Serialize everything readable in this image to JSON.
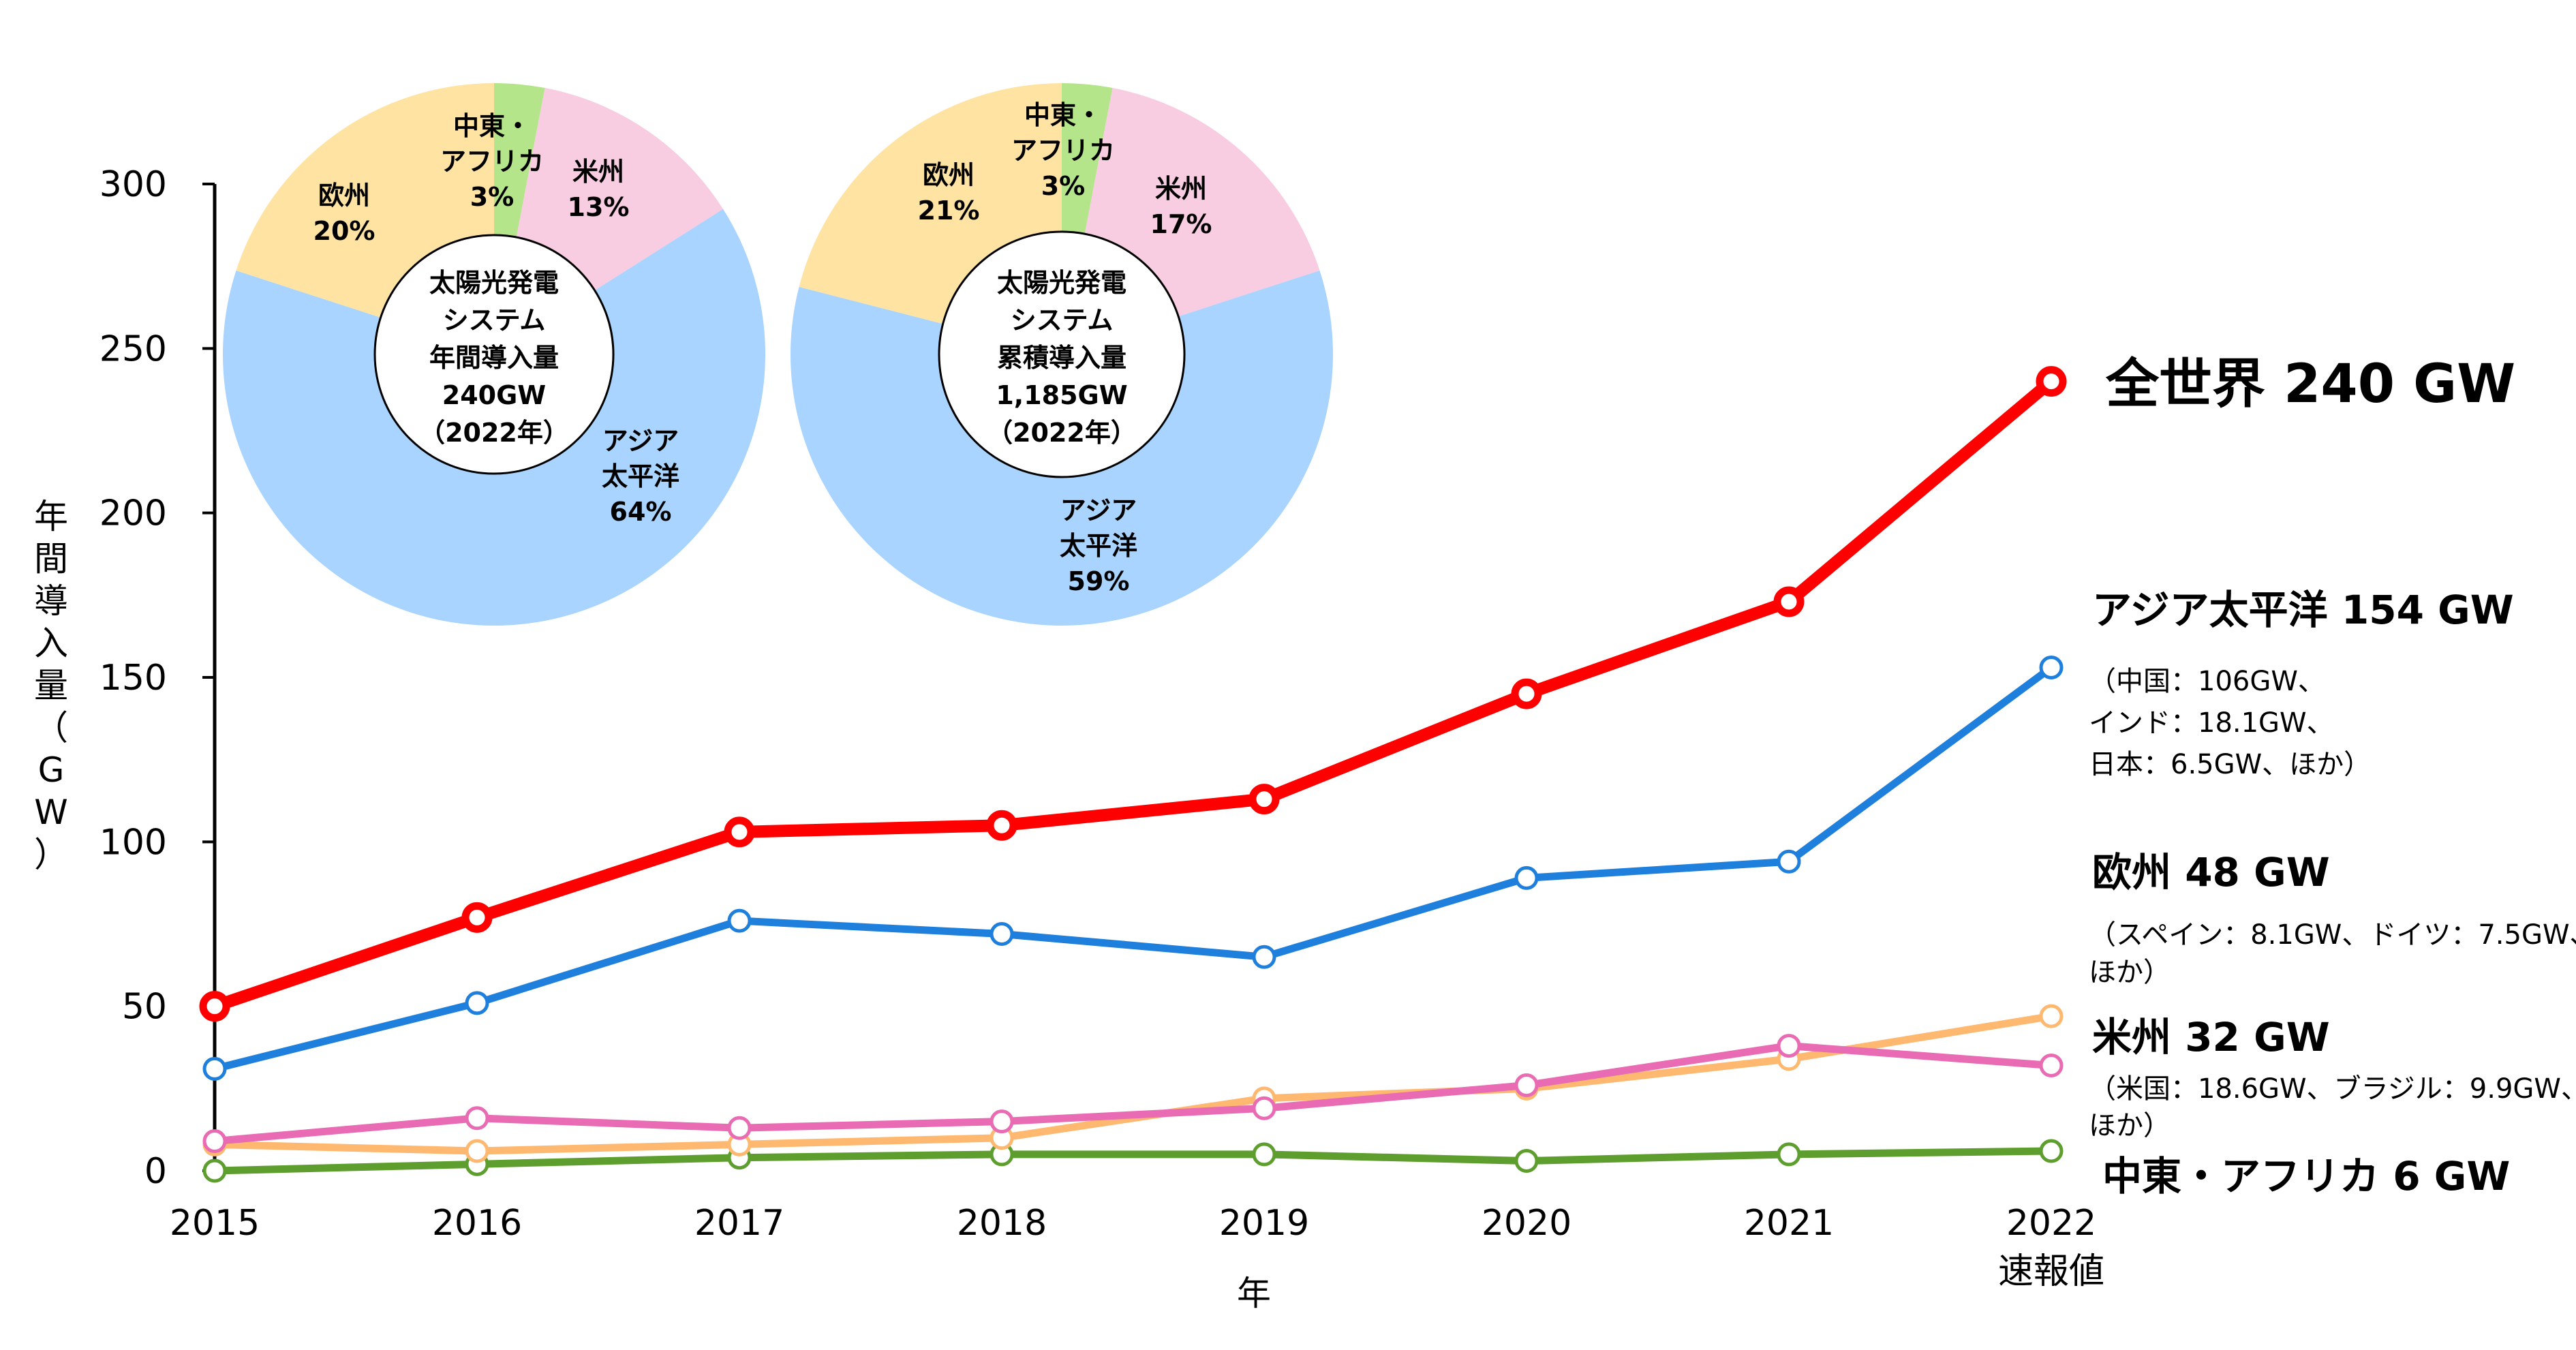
{
  "chart_data": [
    {
      "type": "line",
      "xlabel": "年",
      "ylabel": "年間導入量（GW）",
      "categories": [
        "2015",
        "2016",
        "2017",
        "2018",
        "2019",
        "2020",
        "2021",
        "2022"
      ],
      "category_sublabels": [
        "",
        "",
        "",
        "",
        "",
        "",
        "",
        "速報値"
      ],
      "ylim": [
        0,
        300
      ],
      "yticks": [
        0,
        50,
        100,
        150,
        200,
        250,
        300
      ],
      "grid": false,
      "legend": "none",
      "series": [
        {
          "name": "全世界 240 GW",
          "color": "#FF0000",
          "values": [
            50,
            77,
            103,
            105,
            113,
            145,
            173,
            240
          ]
        },
        {
          "name": "アジア太平洋 154 GW",
          "color": "#1E7FDC",
          "values": [
            31,
            51,
            76,
            72,
            65,
            89,
            94,
            153
          ],
          "notes": [
            "（中国：106GW、",
            "インド：18.1GW、",
            "日本：6.5GW、ほか）"
          ]
        },
        {
          "name": "欧州 48 GW",
          "color": "#FFB870",
          "values": [
            8,
            6,
            8,
            10,
            22,
            25,
            34,
            47
          ],
          "notes": [
            "（スペイン：8.1GW、ドイツ：7.5GW、",
            "ほか）"
          ]
        },
        {
          "name": "米州 32 GW",
          "color": "#E86BB3",
          "values": [
            9,
            16,
            13,
            15,
            19,
            26,
            38,
            32
          ],
          "notes": [
            "（米国：18.6GW、ブラジル：9.9GW、",
            "ほか）"
          ]
        },
        {
          "name": "中東・アフリカ 6 GW",
          "color": "#5E9E2E",
          "values": [
            0,
            2,
            4,
            5,
            5,
            3,
            5,
            6
          ]
        }
      ]
    },
    {
      "type": "pie",
      "center_text": [
        "太陽光発電",
        "システム",
        "年間導入量",
        "240GW",
        "（2022年）"
      ],
      "slices": [
        {
          "label": [
            "中東・",
            "アフリカ",
            "3%"
          ],
          "value": 3,
          "color": "#B5E58A"
        },
        {
          "label": [
            "米州",
            "13%"
          ],
          "value": 13,
          "color": "#F8CCE1"
        },
        {
          "label": [
            "アジア",
            "太平洋",
            "64%"
          ],
          "value": 64,
          "color": "#A8D4FF"
        },
        {
          "label": [
            "欧州",
            "20%"
          ],
          "value": 20,
          "color": "#FFE3A3"
        }
      ]
    },
    {
      "type": "pie",
      "center_text": [
        "太陽光発電",
        "システム",
        "累積導入量",
        "1,185GW",
        "（2022年）"
      ],
      "slices": [
        {
          "label": [
            "中東・",
            "アフリカ",
            "3%"
          ],
          "value": 3,
          "color": "#B5E58A"
        },
        {
          "label": [
            "米州",
            "17%"
          ],
          "value": 17,
          "color": "#F8CCE1"
        },
        {
          "label": [
            "アジア",
            "太平洋",
            "59%"
          ],
          "value": 59,
          "color": "#A8D4FF"
        },
        {
          "label": [
            "欧州",
            "21%"
          ],
          "value": 21,
          "color": "#FFE3A3"
        }
      ]
    }
  ]
}
